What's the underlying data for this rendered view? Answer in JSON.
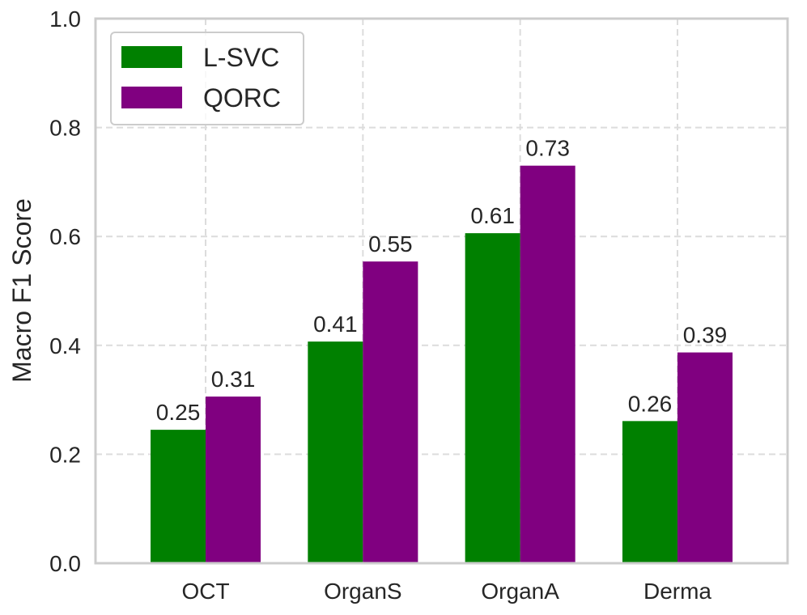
{
  "chart_data": {
    "type": "bar",
    "title": "",
    "xlabel": "",
    "ylabel": "Macro F1 Score",
    "ylim": [
      0,
      1.0
    ],
    "yticks": [
      "0.0",
      "0.2",
      "0.4",
      "0.6",
      "0.8",
      "1.0"
    ],
    "categories": [
      "OCT",
      "OrganS",
      "OrganA",
      "Derma"
    ],
    "grid": true,
    "legend_position": "top-left",
    "series": [
      {
        "name": "L-SVC",
        "color": "#008000",
        "values": [
          0.245,
          0.407,
          0.606,
          0.261
        ],
        "labels": [
          "0.25",
          "0.41",
          "0.61",
          "0.26"
        ]
      },
      {
        "name": "QORC",
        "color": "#800080",
        "values": [
          0.306,
          0.554,
          0.73,
          0.387
        ],
        "labels": [
          "0.31",
          "0.55",
          "0.73",
          "0.39"
        ]
      }
    ]
  }
}
